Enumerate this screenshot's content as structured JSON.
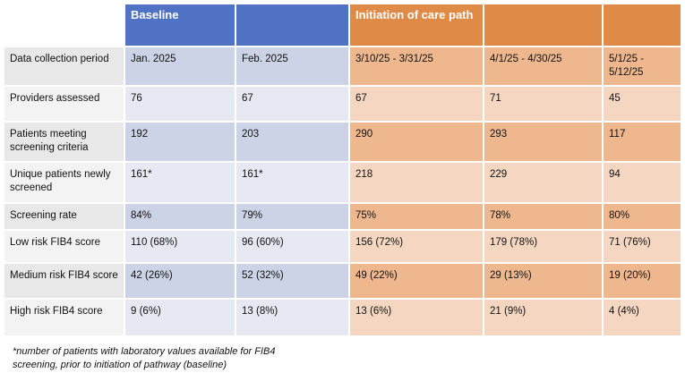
{
  "header": {
    "baseline": "Baseline",
    "initiation": "Initiation of care path"
  },
  "rows": [
    {
      "label": "Data collection period",
      "values": [
        "Jan. 2025",
        "Feb. 2025",
        "3/10/25 - 3/31/25",
        "4/1/25 - 4/30/25",
        "5/1/25 - 5/12/25"
      ]
    },
    {
      "label": "Providers assessed",
      "values": [
        "76",
        "67",
        "67",
        "71",
        "45"
      ]
    },
    {
      "label": "Patients meeting screening criteria",
      "values": [
        "192",
        "203",
        "290",
        "293",
        "117"
      ]
    },
    {
      "label": "Unique patients newly screened",
      "values": [
        "161*",
        "161*",
        "218",
        "229",
        "94"
      ]
    },
    {
      "label": "Screening rate",
      "values": [
        "84%",
        "79%",
        "75%",
        "78%",
        "80%"
      ]
    },
    {
      "label": "Low risk FIB4 score",
      "values": [
        "110 (68%)",
        "96 (60%)",
        "156 (72%)",
        "179 (78%)",
        "71 (76%)"
      ]
    },
    {
      "label": "Medium risk FIB4 score",
      "values": [
        "42 (26%)",
        "52 (32%)",
        "49 (22%)",
        "29 (13%)",
        "19 (20%)"
      ]
    },
    {
      "label": "High risk FIB4 score",
      "values": [
        "9 (6%)",
        "13 (8%)",
        "13 (6%)",
        "21 (9%)",
        "4 (4%)"
      ]
    }
  ],
  "footnote": "*number of patients with laboratory values available for FIB4 screening, prior to initiation of pathway (baseline)"
}
